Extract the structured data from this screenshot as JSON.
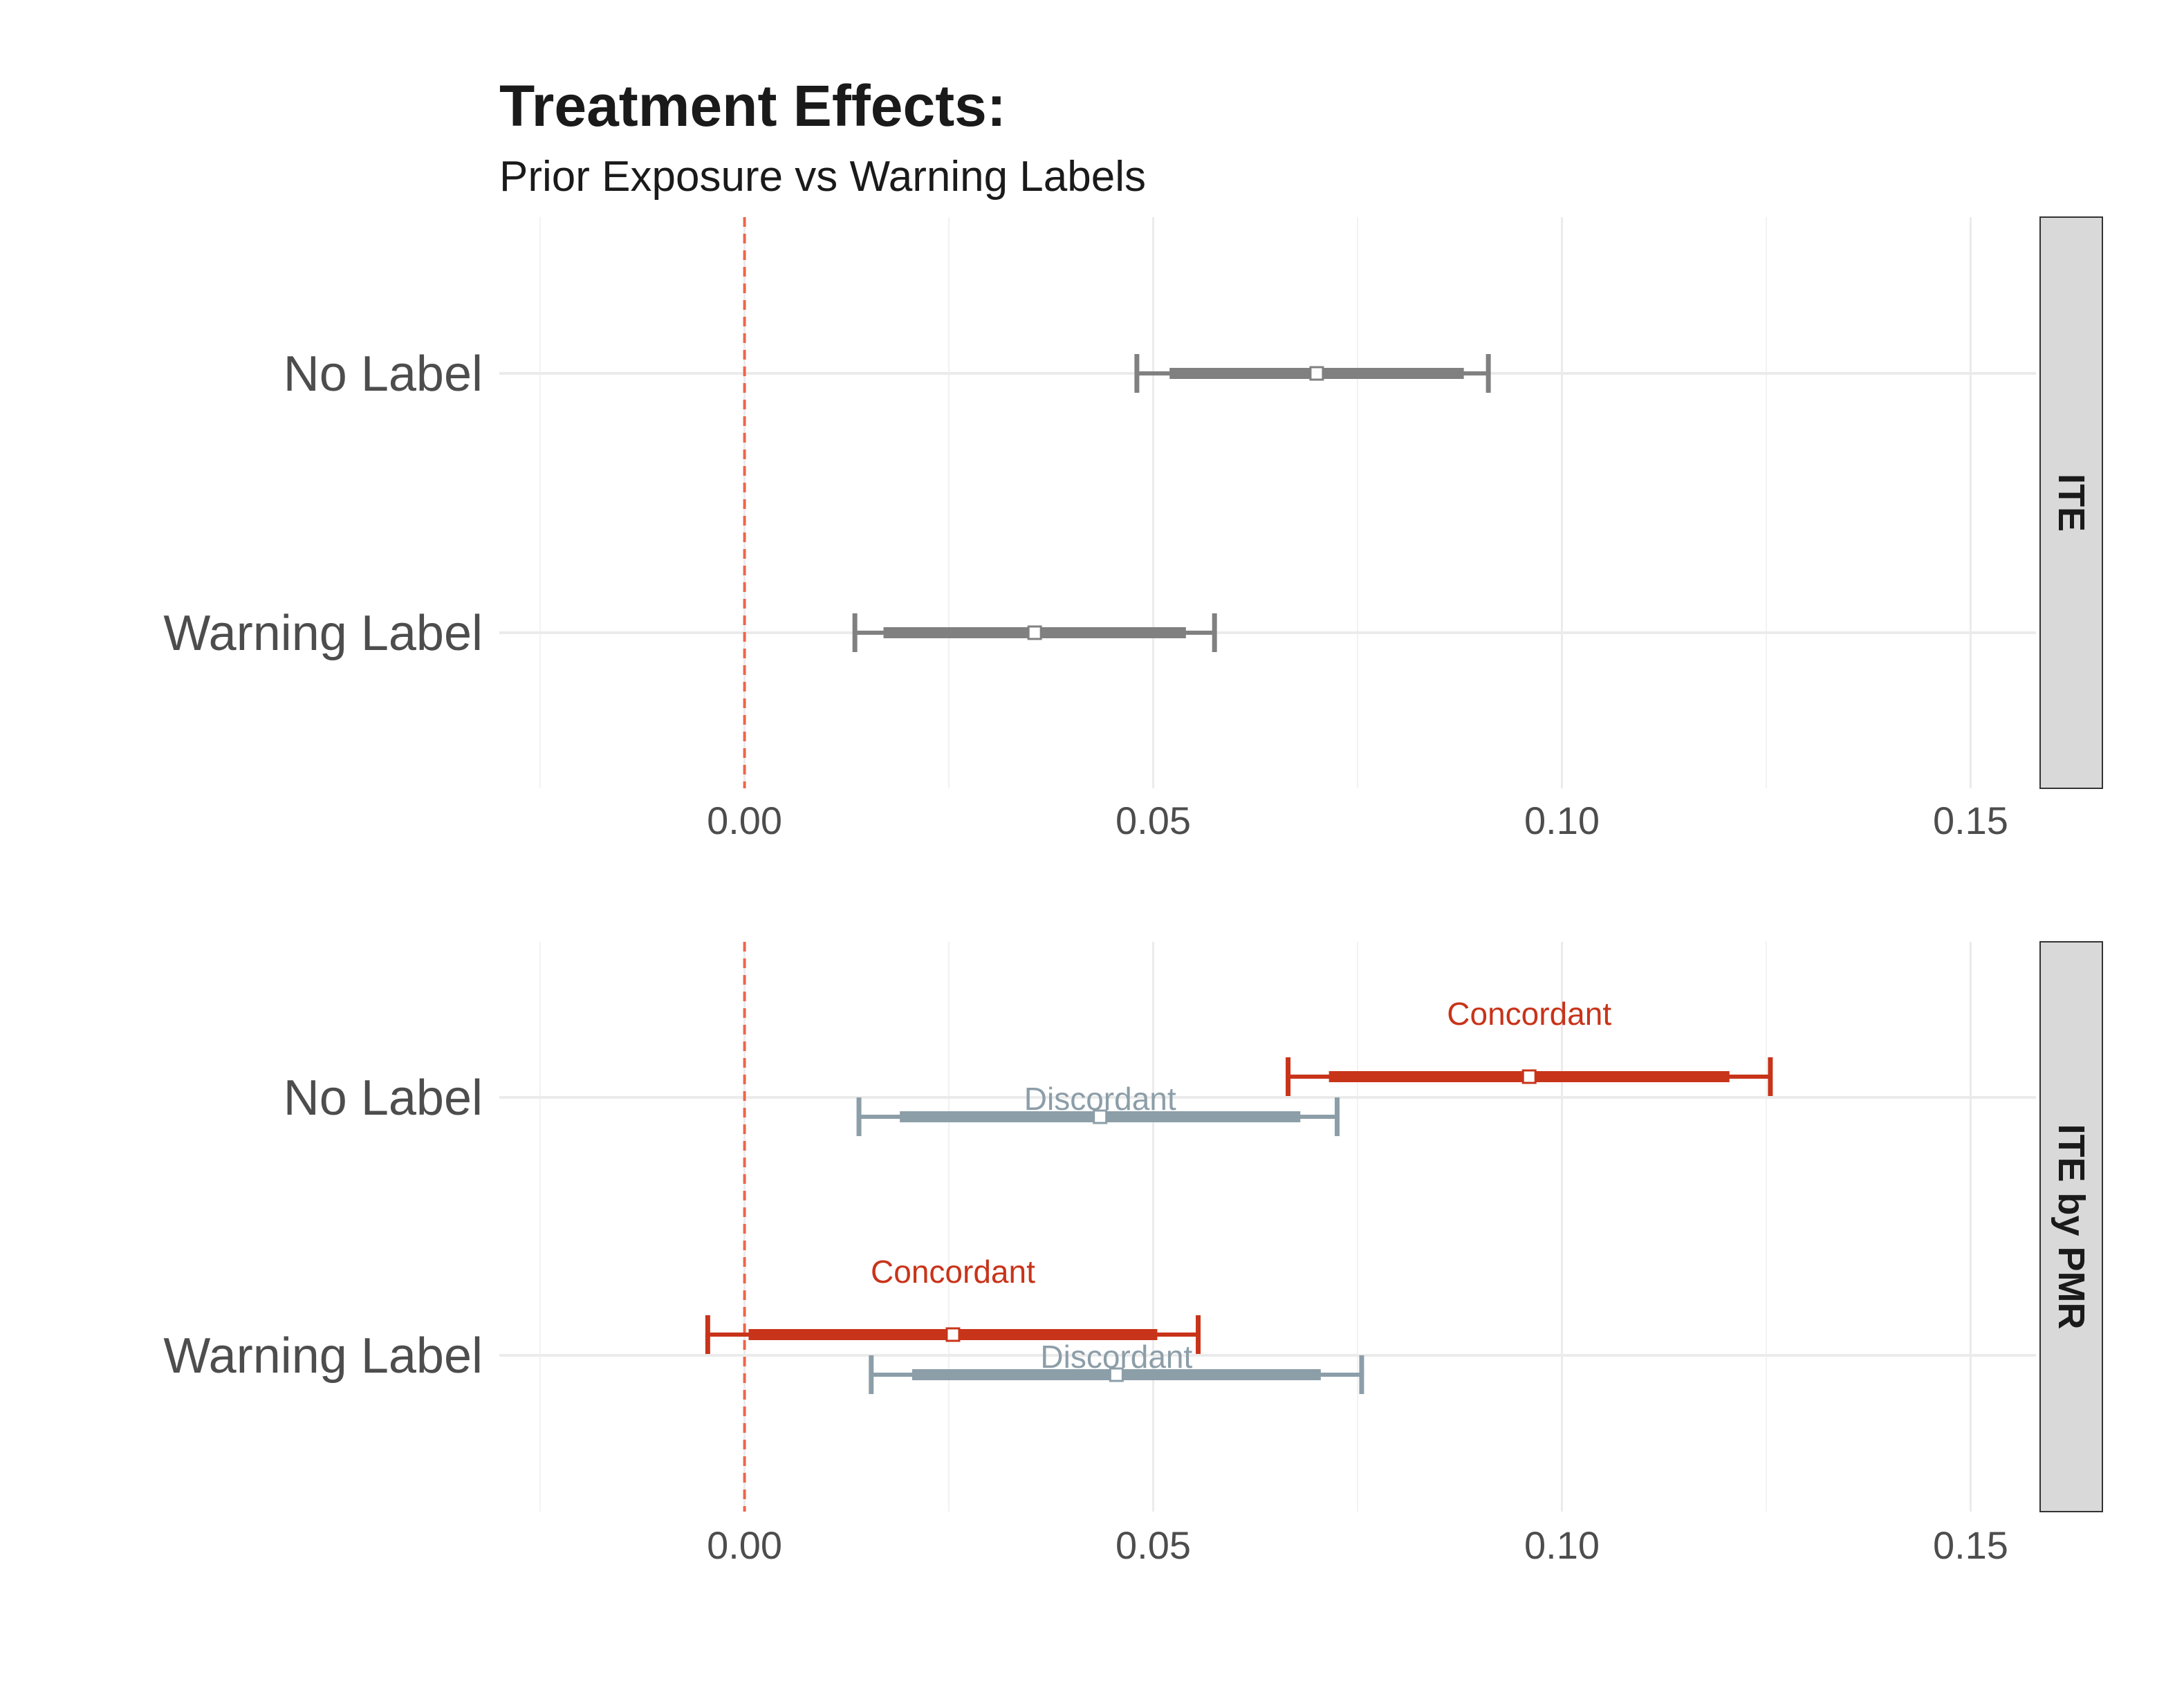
{
  "chart_data": {
    "type": "errorbar",
    "title": "Treatment Effects:",
    "subtitle": "Prior Exposure vs Warning Labels",
    "x_ticks": [
      "0.00",
      "0.05",
      "0.10",
      "0.15"
    ],
    "x_tick_values": [
      0.0,
      0.05,
      0.1,
      0.15
    ],
    "xlim": [
      -0.03,
      0.158
    ],
    "reference_line": 0.0,
    "reference_line_color": "#ef6548",
    "categories": [
      "No Label",
      "Warning Label"
    ],
    "panels": [
      {
        "strip_label": "ITE",
        "series": [
          {
            "name": "",
            "color": "#808080",
            "points": [
              {
                "category": "No Label",
                "estimate": 0.07,
                "ci90": [
                  0.052,
                  0.088
                ],
                "ci95": [
                  0.048,
                  0.091
                ]
              },
              {
                "category": "Warning Label",
                "estimate": 0.0355,
                "ci90": [
                  0.017,
                  0.054
                ],
                "ci95": [
                  0.0135,
                  0.0575
                ]
              }
            ]
          }
        ]
      },
      {
        "strip_label": "ITE by PMR",
        "series": [
          {
            "name": "Concordant",
            "color": "#c8341a",
            "points": [
              {
                "category": "No Label",
                "estimate": 0.096,
                "ci90": [
                  0.0715,
                  0.1205
                ],
                "ci95": [
                  0.0665,
                  0.1255
                ]
              },
              {
                "category": "Warning Label",
                "estimate": 0.0255,
                "ci90": [
                  0.0005,
                  0.0505
                ],
                "ci95": [
                  -0.0045,
                  0.0555
                ]
              }
            ]
          },
          {
            "name": "Discordant",
            "color": "#8c9ea8",
            "points": [
              {
                "category": "No Label",
                "estimate": 0.0435,
                "ci90": [
                  0.019,
                  0.068
                ],
                "ci95": [
                  0.014,
                  0.0725
                ]
              },
              {
                "category": "Warning Label",
                "estimate": 0.0455,
                "ci90": [
                  0.0205,
                  0.0705
                ],
                "ci95": [
                  0.0155,
                  0.0755
                ]
              }
            ]
          }
        ]
      }
    ],
    "grid": true,
    "legend": "none"
  }
}
